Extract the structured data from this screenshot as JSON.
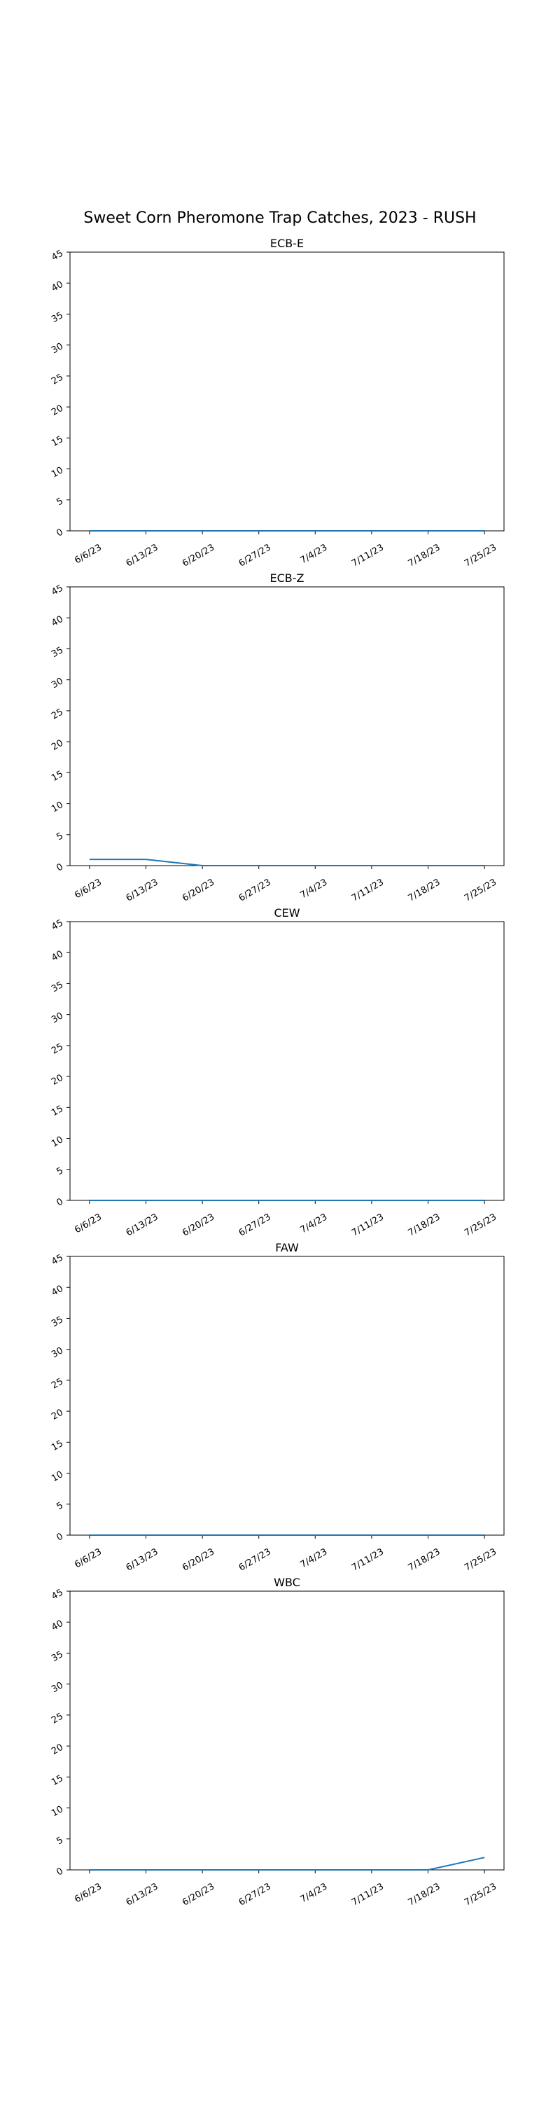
{
  "figure": {
    "title": "Sweet Corn Pheromone Trap Catches, 2023 - RUSH",
    "line_color": "#1f77b4"
  },
  "chart_data": [
    {
      "type": "line",
      "title": "ECB-E",
      "x": [
        "6/6/23",
        "6/13/23",
        "6/20/23",
        "6/27/23",
        "7/4/23",
        "7/11/23",
        "7/18/23",
        "7/25/23"
      ],
      "series": [
        {
          "values": [
            0,
            0,
            0,
            0,
            0,
            0,
            0,
            0
          ]
        }
      ],
      "ylim": [
        0,
        45
      ],
      "yticks": [
        0,
        5,
        10,
        15,
        20,
        25,
        30,
        35,
        40,
        45
      ],
      "grid": false
    },
    {
      "type": "line",
      "title": "ECB-Z",
      "x": [
        "6/6/23",
        "6/13/23",
        "6/20/23",
        "6/27/23",
        "7/4/23",
        "7/11/23",
        "7/18/23",
        "7/25/23"
      ],
      "series": [
        {
          "values": [
            1,
            1,
            0,
            0,
            0,
            0,
            0,
            0
          ]
        }
      ],
      "ylim": [
        0,
        45
      ],
      "yticks": [
        0,
        5,
        10,
        15,
        20,
        25,
        30,
        35,
        40,
        45
      ],
      "grid": false
    },
    {
      "type": "line",
      "title": "CEW",
      "x": [
        "6/6/23",
        "6/13/23",
        "6/20/23",
        "6/27/23",
        "7/4/23",
        "7/11/23",
        "7/18/23",
        "7/25/23"
      ],
      "series": [
        {
          "values": [
            0,
            0,
            0,
            0,
            0,
            0,
            0,
            0
          ]
        }
      ],
      "ylim": [
        0,
        45
      ],
      "yticks": [
        0,
        5,
        10,
        15,
        20,
        25,
        30,
        35,
        40,
        45
      ],
      "grid": false
    },
    {
      "type": "line",
      "title": "FAW",
      "x": [
        "6/6/23",
        "6/13/23",
        "6/20/23",
        "6/27/23",
        "7/4/23",
        "7/11/23",
        "7/18/23",
        "7/25/23"
      ],
      "series": [
        {
          "values": [
            0,
            0,
            0,
            0,
            0,
            0,
            0,
            0
          ]
        }
      ],
      "ylim": [
        0,
        45
      ],
      "yticks": [
        0,
        5,
        10,
        15,
        20,
        25,
        30,
        35,
        40,
        45
      ],
      "grid": false
    },
    {
      "type": "line",
      "title": "WBC",
      "x": [
        "6/6/23",
        "6/13/23",
        "6/20/23",
        "6/27/23",
        "7/4/23",
        "7/11/23",
        "7/18/23",
        "7/25/23"
      ],
      "series": [
        {
          "values": [
            0,
            0,
            0,
            0,
            0,
            0,
            0,
            2
          ]
        }
      ],
      "ylim": [
        0,
        45
      ],
      "yticks": [
        0,
        5,
        10,
        15,
        20,
        25,
        30,
        35,
        40,
        45
      ],
      "grid": false
    }
  ]
}
